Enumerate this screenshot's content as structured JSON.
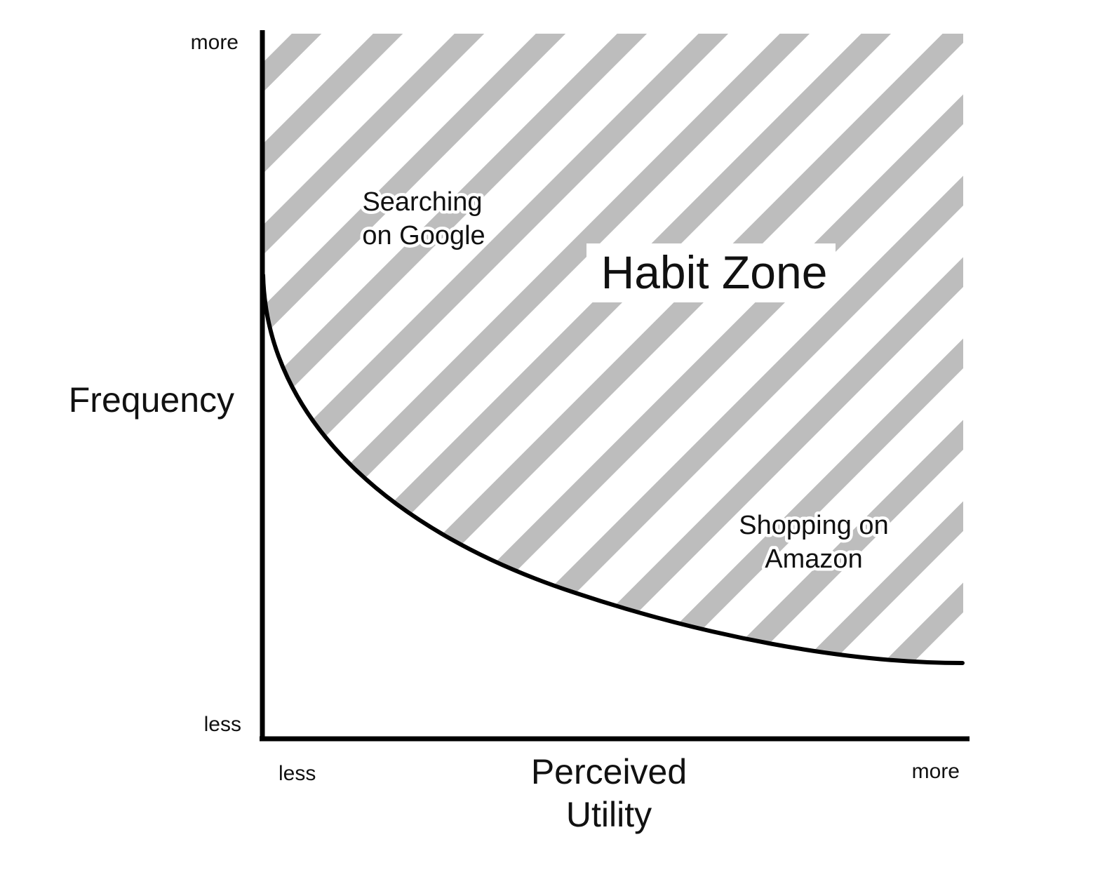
{
  "diagram": {
    "zone_label": "Habit Zone",
    "y_axis": {
      "title": "Frequency",
      "high_label": "more",
      "low_label": "less"
    },
    "x_axis": {
      "title_line1": "Perceived",
      "title_line2": "Utility",
      "low_label": "less",
      "high_label": "more"
    },
    "examples": [
      {
        "line1": "Searching",
        "line2": "on Google"
      },
      {
        "line1": "Shopping on",
        "line2": "Amazon"
      }
    ],
    "colors": {
      "hatch": "#bdbdbd",
      "axis": "#000000",
      "text": "#111111",
      "background": "#ffffff"
    }
  }
}
